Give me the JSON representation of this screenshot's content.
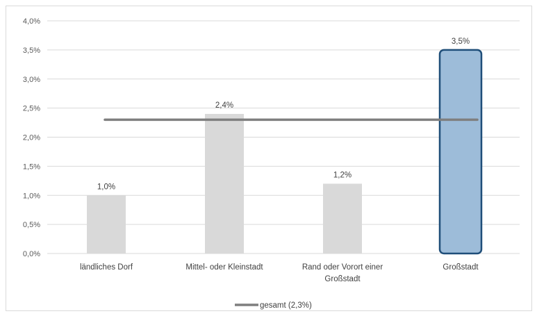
{
  "chart_data": {
    "type": "bar",
    "categories": [
      [
        "ländliches Dorf"
      ],
      [
        "Mittel- oder Kleinstadt"
      ],
      [
        "Rand oder Vorort einer",
        "Großstadt"
      ],
      [
        "Großstadt"
      ]
    ],
    "values": [
      1.0,
      2.4,
      1.2,
      3.5
    ],
    "data_labels": [
      "1,0%",
      "2,4%",
      "1,2%",
      "3,5%"
    ],
    "highlight_index": 3,
    "reference_line": {
      "name": "gesamt (2,3%)",
      "value": 2.3
    },
    "ylim": [
      0,
      4.0
    ],
    "yticks": [
      "0,0%",
      "0,5%",
      "1,0%",
      "1,5%",
      "2,0%",
      "2,5%",
      "3,0%",
      "3,5%",
      "4,0%"
    ],
    "grid": true,
    "legend": "bottom",
    "colors": {
      "bar": "#d9d9d9",
      "highlight_fill": "#9dbcd9",
      "highlight_border": "#1f4e79",
      "reference_line": "#7f7f7f",
      "grid": "#d9d9d9"
    }
  }
}
